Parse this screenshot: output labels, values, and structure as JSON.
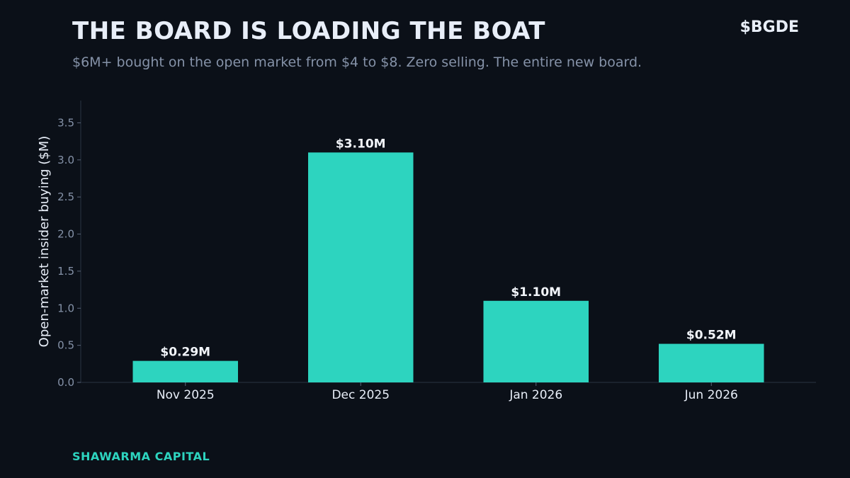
{
  "header": {
    "title": "THE BOARD IS LOADING THE BOAT",
    "ticker": "$BGDE",
    "subtitle": "$6M+ bought on the open market from $4 to $8. Zero selling. The entire new board."
  },
  "footer": {
    "brand": "SHAWARMA CAPITAL"
  },
  "colors": {
    "background": "#0b1018",
    "bar": "#2dd4bf",
    "brand": "#2dd4bf",
    "text": "#e8eef8",
    "muted": "#8592a8"
  },
  "chart_data": {
    "type": "bar",
    "categories": [
      "Nov 2025",
      "Dec 2025",
      "Jan 2026",
      "Jun 2026"
    ],
    "values": [
      0.29,
      3.1,
      1.1,
      0.52
    ],
    "data_labels": [
      "$0.29M",
      "$3.10M",
      "$1.10M",
      "$0.52M"
    ],
    "title": "THE BOARD IS LOADING THE BOAT",
    "xlabel": "",
    "ylabel": "Open-market insider buying ($M)",
    "ylim": [
      0,
      3.8
    ],
    "yticks": [
      0.0,
      0.5,
      1.0,
      1.5,
      2.0,
      2.5,
      3.0,
      3.5
    ],
    "ytick_labels": [
      "0.0",
      "0.5",
      "1.0",
      "1.5",
      "2.0",
      "2.5",
      "3.0",
      "3.5"
    ],
    "grid": false,
    "legend": "none"
  }
}
